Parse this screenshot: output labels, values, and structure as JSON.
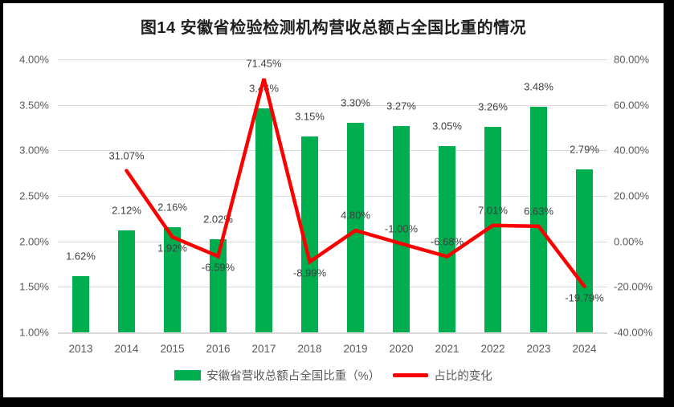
{
  "title": "图14 安徽省检验检测机构营收总额占全国比重的情况",
  "colors": {
    "bar": "#00AE50",
    "line": "#FB0000",
    "grid": "#d9d9d9",
    "axis_text": "#595959",
    "label_text": "#404040"
  },
  "chart_data": {
    "type": "combo-bar-line",
    "title": "图14 安徽省检验检测机构营收总额占全国比重的情况",
    "categories": [
      "2013",
      "2014",
      "2015",
      "2016",
      "2017",
      "2018",
      "2019",
      "2020",
      "2021",
      "2022",
      "2023",
      "2024"
    ],
    "series": [
      {
        "name": "安徽省营收总额占全国比重（%）",
        "type": "bar",
        "axis": "left",
        "color": "#00AE50",
        "values": [
          1.62,
          2.12,
          2.16,
          2.02,
          3.46,
          3.15,
          3.3,
          3.27,
          3.05,
          3.26,
          3.48,
          2.79
        ],
        "labels": [
          "1.62%",
          "2.12%",
          "2.16%",
          "2.02%",
          "3.46%",
          "3.15%",
          "3.30%",
          "3.27%",
          "3.05%",
          "3.26%",
          "3.48%",
          "2.79%"
        ]
      },
      {
        "name": "占比的变化",
        "type": "line",
        "axis": "right",
        "color": "#FB0000",
        "values": [
          null,
          31.07,
          1.92,
          -6.59,
          71.45,
          -8.99,
          4.8,
          -1.0,
          -6.68,
          7.01,
          6.63,
          -19.79
        ],
        "labels": [
          null,
          "31.07%",
          "1.92%",
          "-6.59%",
          "71.45%",
          "-8.99%",
          "4.80%",
          "-1.00%",
          "-6.68%",
          "7.01%",
          "6.63%",
          "-19.79%"
        ],
        "label_positions": [
          null,
          "above",
          "below",
          "below",
          "above",
          "below",
          "above",
          "above",
          "above",
          "above",
          "above",
          "below"
        ]
      }
    ],
    "left_axis": {
      "min": 1.0,
      "max": 4.0,
      "ticks": [
        "4.00%",
        "3.50%",
        "3.00%",
        "2.50%",
        "2.00%",
        "1.50%",
        "1.00%"
      ]
    },
    "right_axis": {
      "min": -40,
      "max": 80,
      "ticks": [
        "80.00%",
        "60.00%",
        "40.00%",
        "20.00%",
        "0.00%",
        "-20.00%",
        "-40.00%"
      ]
    },
    "grid": true,
    "legend_position": "bottom"
  },
  "legend": {
    "bar_label": "安徽省营收总额占全国比重（%）",
    "line_label": "占比的变化"
  }
}
